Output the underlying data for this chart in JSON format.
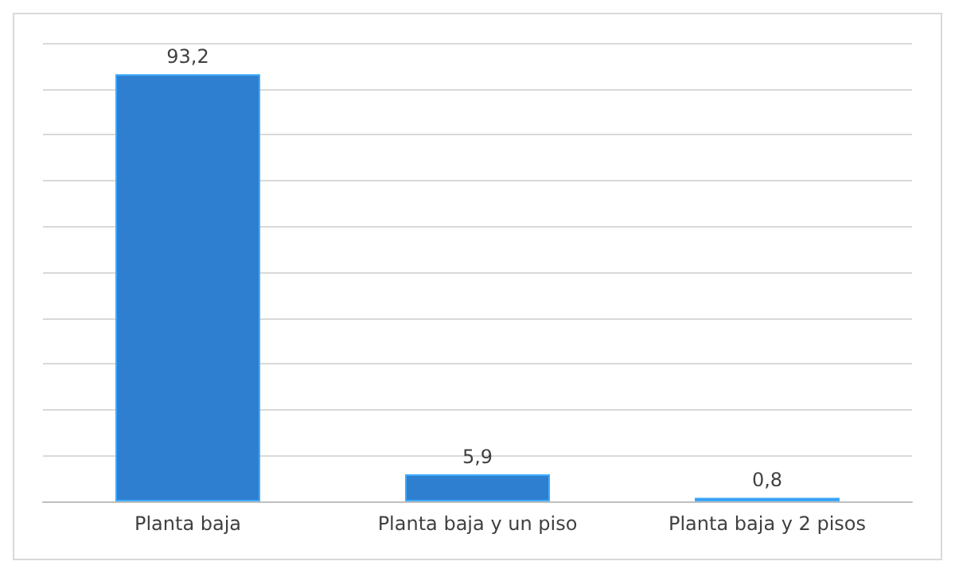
{
  "chart_data": {
    "type": "bar",
    "categories": [
      "Planta baja",
      "Planta baja y un piso",
      "Planta baja y 2 pisos"
    ],
    "values": [
      93.2,
      5.9,
      0.8
    ],
    "value_labels": [
      "93,2",
      "5,9",
      "0,8"
    ],
    "color": "#2e7fd0",
    "ylim": [
      0,
      100
    ],
    "yticks": [
      {
        "value": 0,
        "label": null
      },
      {
        "value": 10,
        "label": null
      },
      {
        "value": 20,
        "label": null
      },
      {
        "value": 30,
        "label": null
      },
      {
        "value": 40,
        "label": null
      },
      {
        "value": 50,
        "label": null
      },
      {
        "value": 60,
        "label": null
      },
      {
        "value": 70,
        "label": null
      },
      {
        "value": 80,
        "label": null
      },
      {
        "value": 90,
        "label": null
      },
      {
        "value": 100,
        "label": null
      }
    ],
    "grid": "y",
    "tick_labels": "x"
  }
}
